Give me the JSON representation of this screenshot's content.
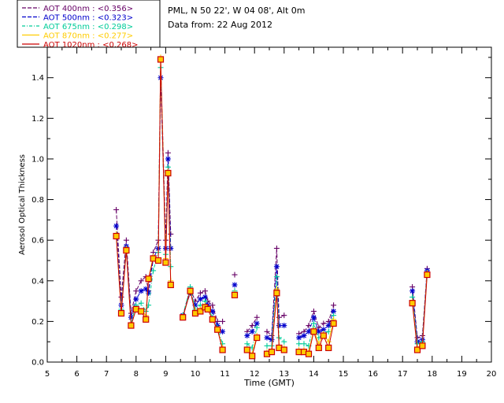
{
  "header": {
    "station": "PML, N 50 22', W 04 08', Alt 0m",
    "date": "Data from: 22 Aug 2012"
  },
  "chart_data": {
    "type": "line",
    "xlabel": "Time (GMT)",
    "ylabel": "Aerosol Optical Thickness",
    "xlim": [
      5,
      20
    ],
    "ylim": [
      0.0,
      1.55
    ],
    "xticks": [
      "5",
      "6",
      "7",
      "8",
      "9",
      "10",
      "11",
      "12",
      "13",
      "14",
      "15",
      "16",
      "17",
      "18",
      "19",
      "20"
    ],
    "yticks": [
      "0.0",
      "0.2",
      "0.4",
      "0.6",
      "0.8",
      "1.0",
      "1.2",
      "1.4"
    ],
    "grid": false,
    "legend_position": "top-left",
    "x": [
      7.33,
      7.5,
      7.67,
      7.83,
      8.0,
      8.17,
      8.33,
      8.42,
      8.58,
      8.75,
      8.83,
      9.0,
      9.08,
      9.17,
      9.58,
      9.83,
      10.0,
      10.17,
      10.33,
      10.42,
      10.58,
      10.75,
      10.92,
      11.33,
      11.75,
      11.92,
      12.08,
      12.42,
      12.58,
      12.75,
      12.83,
      13.0,
      13.5,
      13.67,
      13.83,
      14.0,
      14.17,
      14.33,
      14.5,
      14.67,
      17.33,
      17.5,
      17.67,
      17.83
    ],
    "series": [
      {
        "name": "AOT  400nm : <0.356>",
        "color": "#660066",
        "marker": "plus",
        "values": [
          0.75,
          0.32,
          0.6,
          0.24,
          0.35,
          0.4,
          0.42,
          0.35,
          0.54,
          0.6,
          1.48,
          0.6,
          1.03,
          0.63,
          0.23,
          0.36,
          0.3,
          0.34,
          0.35,
          0.3,
          0.28,
          0.2,
          0.2,
          0.43,
          0.15,
          0.18,
          0.22,
          0.15,
          0.13,
          0.56,
          0.22,
          0.23,
          0.14,
          0.15,
          0.18,
          0.25,
          0.17,
          0.19,
          0.2,
          0.28,
          0.37,
          0.12,
          0.13,
          0.46
        ]
      },
      {
        "name": "AOT  500nm : <0.323>",
        "color": "#0000cc",
        "marker": "asterisk",
        "values": [
          0.67,
          0.28,
          0.57,
          0.22,
          0.31,
          0.35,
          0.36,
          0.34,
          0.51,
          0.56,
          1.4,
          0.56,
          1.0,
          0.56,
          0.23,
          0.34,
          0.28,
          0.31,
          0.32,
          0.28,
          0.25,
          0.18,
          0.15,
          0.38,
          0.13,
          0.15,
          0.19,
          0.12,
          0.11,
          0.47,
          0.18,
          0.18,
          0.12,
          0.13,
          0.15,
          0.22,
          0.15,
          0.16,
          0.18,
          0.25,
          0.35,
          0.1,
          0.11,
          0.45
        ]
      },
      {
        "name": "AOT  675nm : <0.298>",
        "color": "#00cc99",
        "marker": "plus",
        "values": [
          0.63,
          0.26,
          0.56,
          0.19,
          0.28,
          0.29,
          0.25,
          0.28,
          0.45,
          0.54,
          1.45,
          0.53,
          0.96,
          0.47,
          0.23,
          0.37,
          0.26,
          0.28,
          0.3,
          0.27,
          0.22,
          0.17,
          0.09,
          0.35,
          0.09,
          0.07,
          0.17,
          0.08,
          0.08,
          0.42,
          0.12,
          0.1,
          0.09,
          0.09,
          0.08,
          0.19,
          0.12,
          0.14,
          0.15,
          0.23,
          0.32,
          0.09,
          0.1,
          0.44
        ]
      },
      {
        "name": "AOT  870nm : <0.277>",
        "color": "#ffcc00",
        "marker": "plus",
        "values": [
          0.63,
          0.25,
          0.56,
          0.18,
          0.26,
          0.25,
          0.23,
          0.41,
          0.52,
          0.51,
          1.5,
          0.51,
          0.94,
          0.4,
          0.22,
          0.35,
          0.25,
          0.26,
          0.28,
          0.26,
          0.21,
          0.16,
          0.07,
          0.34,
          0.06,
          0.04,
          0.13,
          0.05,
          0.06,
          0.36,
          0.08,
          0.07,
          0.06,
          0.06,
          0.05,
          0.16,
          0.09,
          0.14,
          0.1,
          0.21,
          0.3,
          0.07,
          0.09,
          0.44
        ]
      },
      {
        "name": "AOT 1020nm : <0.268>",
        "color": "#cc0000",
        "marker": "square",
        "values": [
          0.62,
          0.24,
          0.55,
          0.18,
          0.26,
          0.25,
          0.21,
          0.41,
          0.51,
          0.5,
          1.49,
          0.49,
          0.93,
          0.38,
          0.22,
          0.35,
          0.24,
          0.25,
          0.27,
          0.26,
          0.21,
          0.16,
          0.06,
          0.33,
          0.06,
          0.03,
          0.12,
          0.04,
          0.05,
          0.34,
          0.07,
          0.06,
          0.05,
          0.05,
          0.04,
          0.15,
          0.07,
          0.13,
          0.07,
          0.19,
          0.29,
          0.06,
          0.08,
          0.43
        ]
      }
    ]
  }
}
